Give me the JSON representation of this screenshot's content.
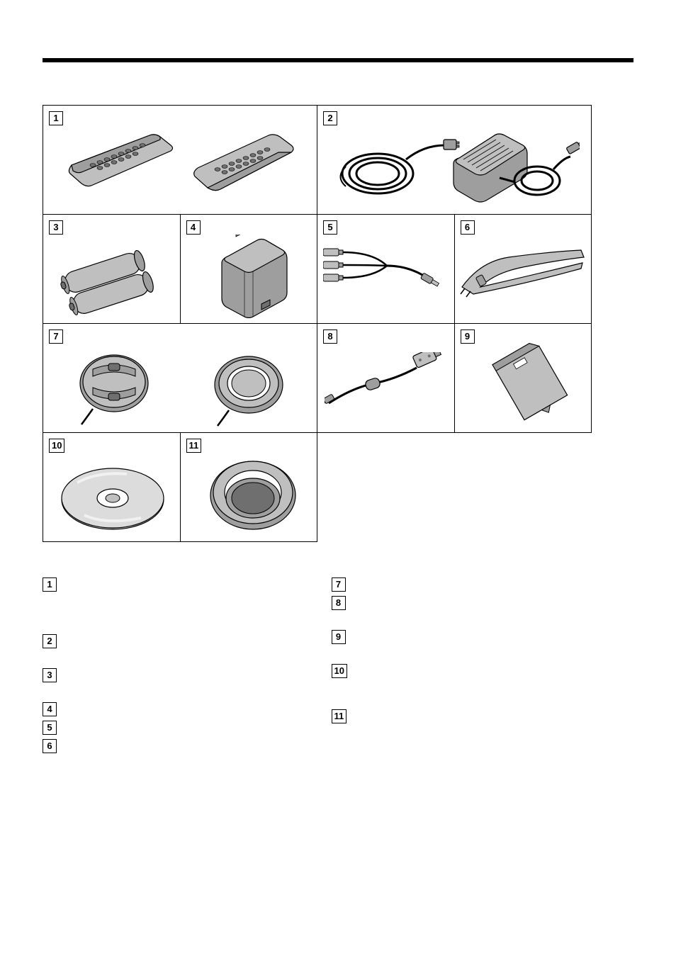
{
  "page": {
    "rule_color": "#000000",
    "background": "#ffffff"
  },
  "grid": {
    "cells": [
      {
        "num": "1"
      },
      {
        "num": "2"
      },
      {
        "num": "3"
      },
      {
        "num": "4"
      },
      {
        "num": "5"
      },
      {
        "num": "6"
      },
      {
        "num": "7"
      },
      {
        "num": "8"
      },
      {
        "num": "9"
      },
      {
        "num": "10"
      },
      {
        "num": "11"
      }
    ]
  },
  "illustration_style": {
    "stroke": "#000000",
    "fill_light": "#bfbfbf",
    "fill_mid": "#9e9e9e",
    "fill_dark": "#6f6f6f",
    "fill_white": "#ffffff",
    "stroke_width": 1.2
  },
  "left_list": [
    {
      "num": "1",
      "spacer_after": 60
    },
    {
      "num": "2",
      "spacer_after": 28
    },
    {
      "num": "3",
      "spacer_after": 28
    },
    {
      "num": "4",
      "spacer_after": 6
    },
    {
      "num": "5",
      "spacer_after": 6
    },
    {
      "num": "6",
      "spacer_after": 0
    }
  ],
  "right_list": [
    {
      "num": "7",
      "spacer_after": 6
    },
    {
      "num": "8",
      "spacer_after": 28
    },
    {
      "num": "9",
      "spacer_after": 28
    },
    {
      "num": "10",
      "spacer_after": 44
    },
    {
      "num": "11",
      "spacer_after": 0
    }
  ]
}
